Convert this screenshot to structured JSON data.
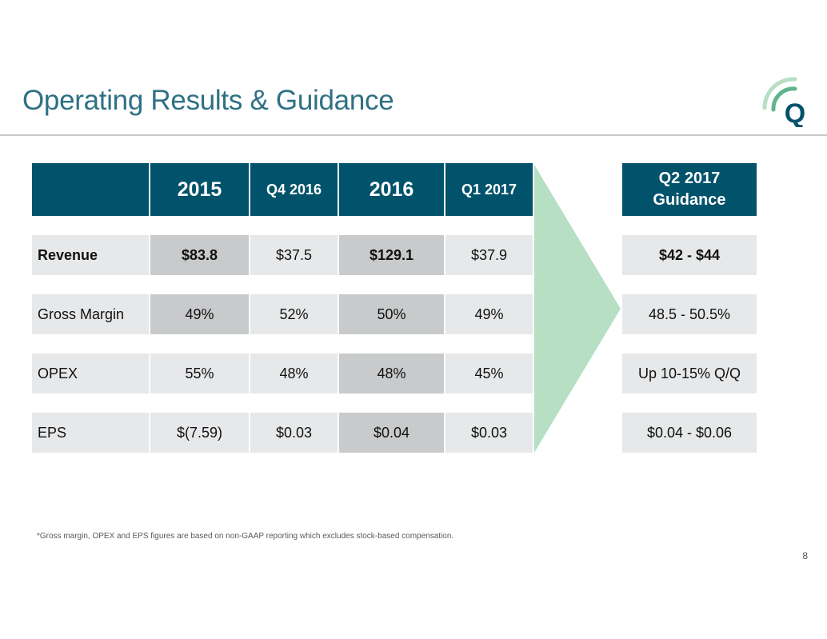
{
  "slide": {
    "title": "Operating Results & Guidance",
    "footnote": "*Gross margin, OPEX and EPS figures are based on non-GAAP reporting which excludes stock-based compensation.",
    "page_number": "8",
    "logo_letter": "Q",
    "colors": {
      "title": "#2E7184",
      "header_bg": "#01526B",
      "cell_light": "#E7E8E9",
      "cell_mid": "#C9CACB",
      "arrow": "#B7DFC4"
    }
  },
  "table": {
    "headers": [
      "",
      "2015",
      "Q4 2016",
      "2016",
      "Q1 2017"
    ],
    "rows": [
      {
        "label": "Revenue",
        "values": [
          "$83.8",
          "$37.5",
          "$129.1",
          "$37.9"
        ]
      },
      {
        "label": "Gross Margin",
        "values": [
          "49%",
          "52%",
          "50%",
          "49%"
        ]
      },
      {
        "label": "OPEX",
        "values": [
          "55%",
          "48%",
          "48%",
          "45%"
        ]
      },
      {
        "label": "EPS",
        "values": [
          "$(7.59)",
          "$0.03",
          "$0.04",
          "$0.03"
        ]
      }
    ]
  },
  "guidance": {
    "header_line1": "Q2 2017",
    "header_line2": "Guidance",
    "values": [
      "$42 - $44",
      "48.5 - 50.5%",
      "Up 10-15% Q/Q",
      "$0.04 - $0.06"
    ]
  }
}
